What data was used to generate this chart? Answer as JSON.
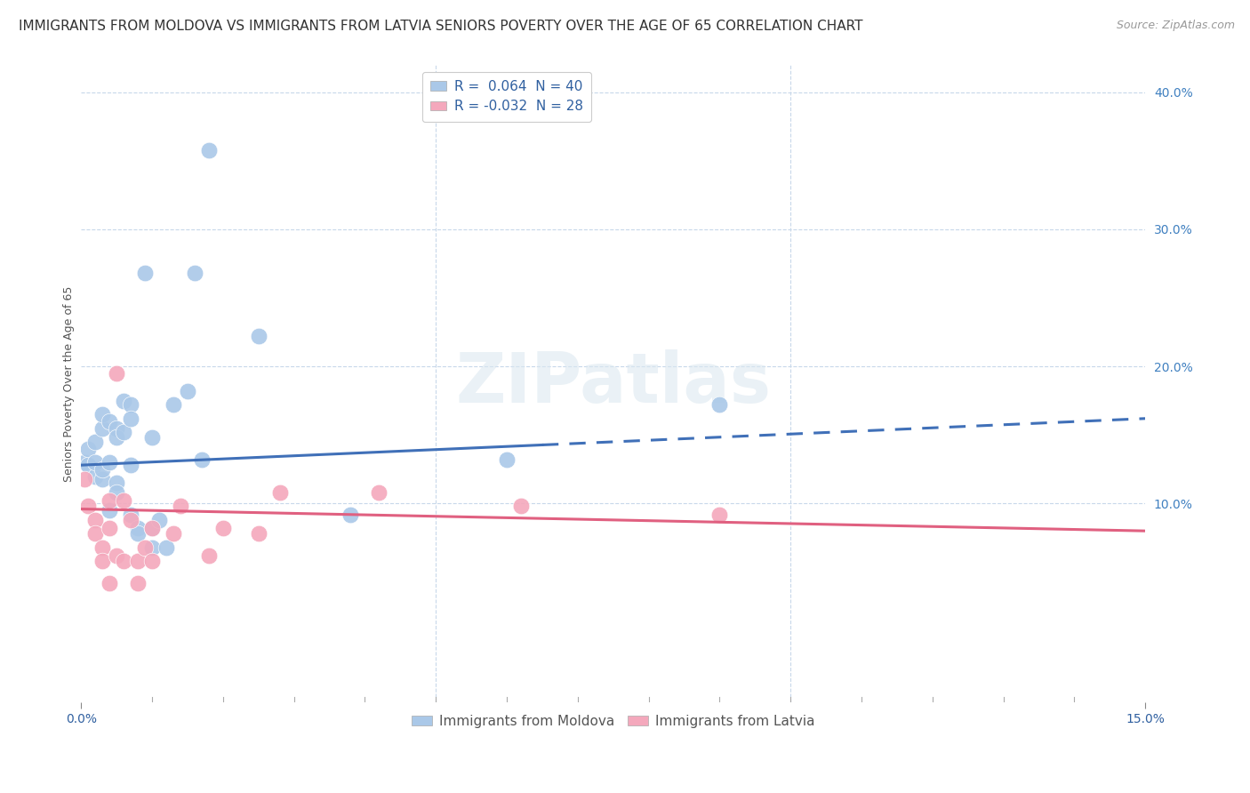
{
  "title": "IMMIGRANTS FROM MOLDOVA VS IMMIGRANTS FROM LATVIA SENIORS POVERTY OVER THE AGE OF 65 CORRELATION CHART",
  "source": "Source: ZipAtlas.com",
  "ylabel": "Seniors Poverty Over the Age of 65",
  "xlim": [
    0.0,
    0.15
  ],
  "ylim": [
    -0.045,
    0.42
  ],
  "xticks_shown": [
    0.0,
    0.15
  ],
  "xticklabels_shown": [
    "0.0%",
    "15.0%"
  ],
  "xticks_minor": [
    0.05,
    0.1
  ],
  "right_yticks": [
    0.1,
    0.2,
    0.3,
    0.4
  ],
  "right_yticklabels": [
    "10.0%",
    "20.0%",
    "30.0%",
    "40.0%"
  ],
  "legend_r1": "R =  0.064",
  "legend_n1": "N = 40",
  "legend_r2": "R = -0.032",
  "legend_n2": "N = 28",
  "moldova_color": "#aac8e8",
  "latvia_color": "#f4a8bc",
  "moldova_line_color": "#4070b8",
  "latvia_line_color": "#e06080",
  "grid_color": "#c8d8ea",
  "background_color": "#ffffff",
  "watermark": "ZIPatlas",
  "moldova_points": [
    [
      0.0005,
      0.13
    ],
    [
      0.001,
      0.128
    ],
    [
      0.001,
      0.14
    ],
    [
      0.002,
      0.12
    ],
    [
      0.002,
      0.145
    ],
    [
      0.002,
      0.13
    ],
    [
      0.003,
      0.155
    ],
    [
      0.003,
      0.165
    ],
    [
      0.003,
      0.118
    ],
    [
      0.003,
      0.125
    ],
    [
      0.004,
      0.095
    ],
    [
      0.004,
      0.16
    ],
    [
      0.004,
      0.13
    ],
    [
      0.005,
      0.155
    ],
    [
      0.005,
      0.148
    ],
    [
      0.005,
      0.115
    ],
    [
      0.005,
      0.108
    ],
    [
      0.006,
      0.175
    ],
    [
      0.006,
      0.152
    ],
    [
      0.007,
      0.172
    ],
    [
      0.007,
      0.162
    ],
    [
      0.007,
      0.128
    ],
    [
      0.007,
      0.092
    ],
    [
      0.008,
      0.082
    ],
    [
      0.008,
      0.078
    ],
    [
      0.009,
      0.268
    ],
    [
      0.01,
      0.148
    ],
    [
      0.01,
      0.082
    ],
    [
      0.01,
      0.068
    ],
    [
      0.011,
      0.088
    ],
    [
      0.012,
      0.068
    ],
    [
      0.013,
      0.172
    ],
    [
      0.015,
      0.182
    ],
    [
      0.016,
      0.268
    ],
    [
      0.017,
      0.132
    ],
    [
      0.018,
      0.358
    ],
    [
      0.025,
      0.222
    ],
    [
      0.038,
      0.092
    ],
    [
      0.06,
      0.132
    ],
    [
      0.09,
      0.172
    ]
  ],
  "latvia_points": [
    [
      0.0005,
      0.118
    ],
    [
      0.001,
      0.098
    ],
    [
      0.002,
      0.088
    ],
    [
      0.002,
      0.078
    ],
    [
      0.003,
      0.068
    ],
    [
      0.003,
      0.058
    ],
    [
      0.004,
      0.102
    ],
    [
      0.004,
      0.082
    ],
    [
      0.004,
      0.042
    ],
    [
      0.005,
      0.062
    ],
    [
      0.005,
      0.195
    ],
    [
      0.006,
      0.102
    ],
    [
      0.006,
      0.058
    ],
    [
      0.007,
      0.088
    ],
    [
      0.008,
      0.058
    ],
    [
      0.008,
      0.042
    ],
    [
      0.009,
      0.068
    ],
    [
      0.01,
      0.058
    ],
    [
      0.01,
      0.082
    ],
    [
      0.013,
      0.078
    ],
    [
      0.014,
      0.098
    ],
    [
      0.018,
      0.062
    ],
    [
      0.02,
      0.082
    ],
    [
      0.025,
      0.078
    ],
    [
      0.028,
      0.108
    ],
    [
      0.042,
      0.108
    ],
    [
      0.062,
      0.098
    ],
    [
      0.09,
      0.092
    ]
  ],
  "moldova_line": {
    "x0": 0.0,
    "y0": 0.128,
    "x1": 0.15,
    "y1": 0.162
  },
  "moldova_line_solid_end": 0.065,
  "latvia_line": {
    "x0": 0.0,
    "y0": 0.096,
    "x1": 0.15,
    "y1": 0.08
  },
  "point_size": 180,
  "title_fontsize": 11,
  "label_fontsize": 9,
  "tick_fontsize": 10,
  "legend_fontsize": 11
}
